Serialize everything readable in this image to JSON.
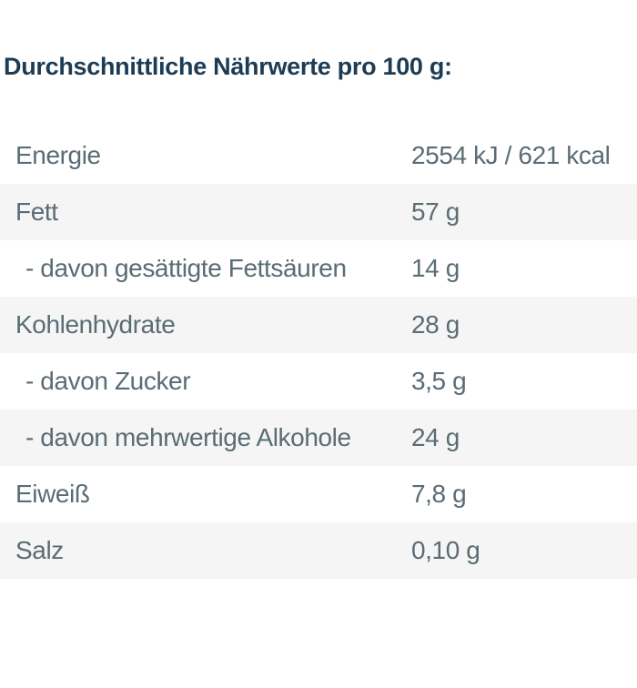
{
  "heading": "Durchschnittliche Nährwerte pro 100 g:",
  "table": {
    "rows": [
      {
        "label": "Energie",
        "value": "2554 kJ / 621 kcal",
        "indent": false
      },
      {
        "label": "Fett",
        "value": "57 g",
        "indent": false
      },
      {
        "label": "- davon gesättigte Fettsäuren",
        "value": "14 g",
        "indent": true
      },
      {
        "label": "Kohlenhydrate",
        "value": "28 g",
        "indent": false
      },
      {
        "label": "- davon Zucker",
        "value": "3,5 g",
        "indent": true
      },
      {
        "label": "- davon mehrwertige Alkohole",
        "value": "24 g",
        "indent": true
      },
      {
        "label": "Eiweiß",
        "value": "7,8 g",
        "indent": false
      },
      {
        "label": "Salz",
        "value": "0,10 g",
        "indent": false
      }
    ]
  },
  "colors": {
    "heading_text": "#1d3c54",
    "row_text": "#5a6c74",
    "row_alt_bg": "#f5f5f5",
    "page_bg": "#ffffff"
  }
}
